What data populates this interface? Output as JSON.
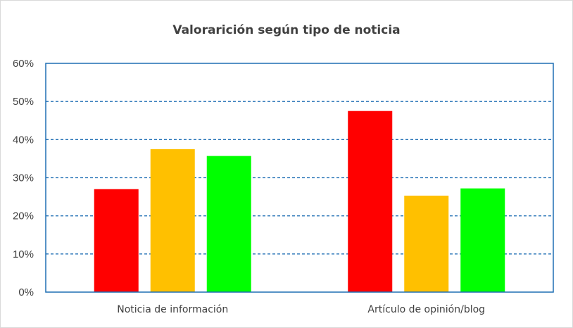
{
  "chart_data": {
    "type": "bar",
    "title": "Valorarición según tipo de noticia",
    "xlabel": "",
    "ylabel": "",
    "categories": [
      "Noticia de información",
      "Artículo de opinión/blog"
    ],
    "series": [
      {
        "color": "#ff0000",
        "values": [
          0.27,
          0.475
        ]
      },
      {
        "color": "#ffc000",
        "values": [
          0.375,
          0.253
        ]
      },
      {
        "color": "#00ff00",
        "values": [
          0.357,
          0.272
        ]
      }
    ],
    "ylim": [
      0,
      0.6
    ],
    "yticks": [
      "0%",
      "10%",
      "20%",
      "30%",
      "40%",
      "50%",
      "60%"
    ],
    "grid": true,
    "grid_style": "dashed",
    "grid_color": "#1f6fb4",
    "plot_border_color": "#1f6fb4",
    "legend": "none"
  }
}
